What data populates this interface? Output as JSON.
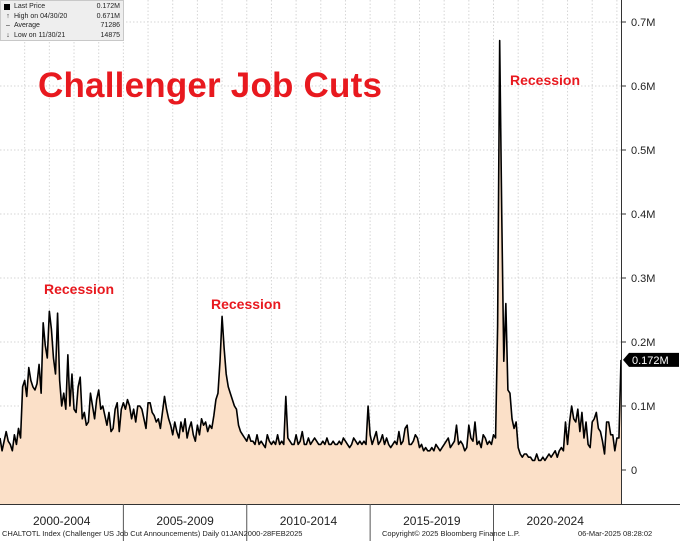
{
  "legend": {
    "rows": [
      {
        "icon": "last-price-square",
        "label": "Last Price",
        "value": "0.172M"
      },
      {
        "icon": "high-arrow",
        "label": "High on 04/30/20",
        "value": "0.671M"
      },
      {
        "icon": "average-dash",
        "label": "Average",
        "value": "71286"
      },
      {
        "icon": "low-arrow",
        "label": "Low on 11/30/21",
        "value": "14875"
      }
    ]
  },
  "chart_data": {
    "type": "area",
    "title": "Challenger Job Cuts",
    "annotations": [
      "Recession",
      "Recession",
      "Recession"
    ],
    "y_tick_labels": [
      "0",
      "0.1M",
      "0.2M",
      "0.3M",
      "0.4M",
      "0.5M",
      "0.6M",
      "0.7M"
    ],
    "y_ticks": [
      0,
      100000,
      200000,
      300000,
      400000,
      500000,
      600000,
      700000
    ],
    "ylim": [
      -50000,
      720000
    ],
    "x_period_labels": [
      "2000-2004",
      "2005-2009",
      "2010-2014",
      "2015-2019",
      "2020-2024"
    ],
    "xlim": [
      "2000-01",
      "2025-03"
    ],
    "last_value_label": "0.172M",
    "grid": true,
    "y_axis_side": "right",
    "colors": {
      "line": "#000000",
      "fill": "#fbe0c8",
      "accent": "#e8191f"
    },
    "series": [
      {
        "frequency": "monthly",
        "x_start": "2000-01",
        "values": [
          50000,
          30000,
          45000,
          60000,
          45000,
          40000,
          30000,
          55000,
          40000,
          65000,
          50000,
          130000,
          140000,
          115000,
          160000,
          140000,
          130000,
          125000,
          135000,
          165000,
          120000,
          230000,
          195000,
          175000,
          248000,
          220000,
          175000,
          150000,
          245000,
          140000,
          100000,
          120000,
          95000,
          180000,
          100000,
          150000,
          95000,
          90000,
          130000,
          145000,
          80000,
          90000,
          70000,
          75000,
          120000,
          100000,
          80000,
          110000,
          125000,
          95000,
          100000,
          85000,
          70000,
          90000,
          60000,
          65000,
          95000,
          105000,
          60000,
          95000,
          105000,
          95000,
          110000,
          100000,
          80000,
          95000,
          75000,
          100000,
          100000,
          95000,
          80000,
          65000,
          105000,
          105000,
          90000,
          85000,
          75000,
          80000,
          65000,
          90000,
          115000,
          95000,
          80000,
          70000,
          55000,
          75000,
          60000,
          50000,
          75000,
          60000,
          80000,
          50000,
          65000,
          75000,
          55000,
          45000,
          70000,
          55000,
          80000,
          70000,
          75000,
          60000,
          70000,
          65000,
          85000,
          110000,
          120000,
          170000,
          240000,
          190000,
          150000,
          130000,
          120000,
          110000,
          100000,
          95000,
          70000,
          60000,
          55000,
          50000,
          45000,
          55000,
          45000,
          45000,
          40000,
          55000,
          40000,
          45000,
          40000,
          35000,
          55000,
          45000,
          40000,
          45000,
          40000,
          55000,
          40000,
          45000,
          40000,
          115000,
          50000,
          45000,
          40000,
          40000,
          55000,
          40000,
          45000,
          60000,
          40000,
          40000,
          50000,
          40000,
          45000,
          50000,
          45000,
          40000,
          40000,
          45000,
          40000,
          50000,
          40000,
          40000,
          45000,
          40000,
          40000,
          45000,
          40000,
          50000,
          45000,
          40000,
          35000,
          40000,
          50000,
          45000,
          40000,
          45000,
          40000,
          45000,
          40000,
          100000,
          55000,
          40000,
          50000,
          60000,
          40000,
          45000,
          55000,
          40000,
          50000,
          40000,
          35000,
          40000,
          45000,
          40000,
          60000,
          40000,
          45000,
          65000,
          70000,
          40000,
          40000,
          45000,
          55000,
          50000,
          35000,
          40000,
          30000,
          35000,
          30000,
          30000,
          35000,
          30000,
          40000,
          35000,
          30000,
          35000,
          40000,
          45000,
          50000,
          35000,
          40000,
          45000,
          70000,
          40000,
          45000,
          40000,
          30000,
          35000,
          70000,
          50000,
          45000,
          75000,
          40000,
          45000,
          35000,
          55000,
          50000,
          40000,
          45000,
          40000,
          55000,
          50000,
          225000,
          671000,
          400000,
          170000,
          260000,
          125000,
          120000,
          80000,
          65000,
          75000,
          35000,
          25000,
          20000,
          25000,
          25000,
          20000,
          20000,
          15000,
          15000,
          25000,
          15000,
          15000,
          20000,
          15000,
          20000,
          25000,
          20000,
          25000,
          30000,
          20000,
          30000,
          35000,
          30000,
          75000,
          40000,
          75000,
          100000,
          80000,
          75000,
          95000,
          60000,
          90000,
          50000,
          75000,
          40000,
          35000,
          75000,
          80000,
          90000,
          65000,
          60000,
          45000,
          25000,
          75000,
          75000,
          55000,
          55000,
          30000,
          50000,
          50000,
          172000
        ]
      }
    ]
  },
  "footer": {
    "left": "CHALTOTL Index (Challenger US Job Cut Announcements)  Daily 01JAN2000-28FEB2025",
    "center": "Copyright© 2025 Bloomberg Finance L.P.",
    "right": "06-Mar-2025 08:28:02"
  }
}
